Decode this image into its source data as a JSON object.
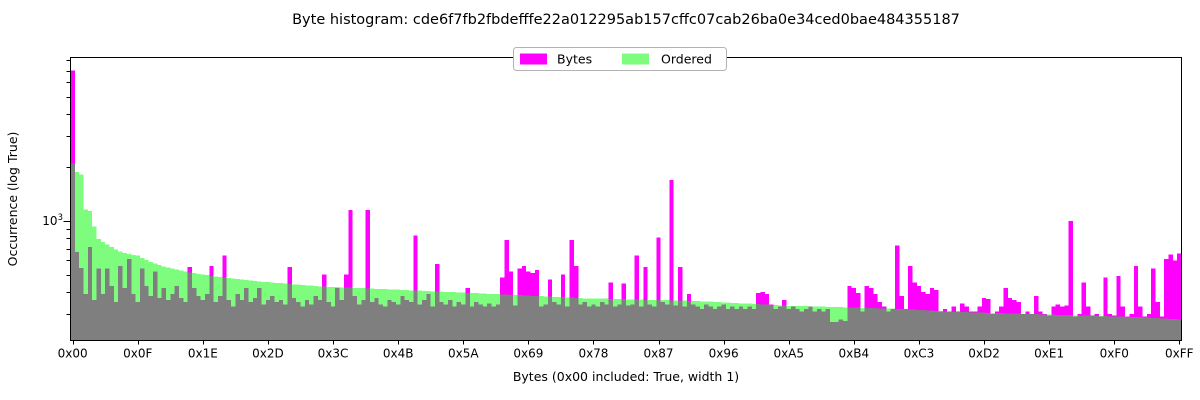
{
  "title": "Byte histogram: cde6f7fb2fbdefffe22a012295ab157cffc07cab26ba0e34ced0bae484355187",
  "legend": {
    "position": "upper center",
    "items": [
      {
        "label": "Bytes",
        "color": "#ff00ff"
      },
      {
        "label": "Ordered",
        "color": "#7dfc7d"
      }
    ]
  },
  "axes": {
    "x": {
      "label": "Bytes (0x00 included: True, width 1)"
    },
    "y": {
      "label": "Occurrence (log True)",
      "major_tick_base": "10",
      "major_tick_exponent": "3"
    }
  },
  "colors": {
    "bytes": "#ff00ff",
    "ordered": "#7dfc7d",
    "overlap": "#7f7f7f",
    "spine": "#000000",
    "background": "#ffffff",
    "legend_border": "#b3b3b3"
  },
  "chart_data": {
    "type": "bar",
    "title": "Byte histogram: cde6f7fb2fbdefffe22a012295ab157cffc07cab26ba0e34ced0bae484355187",
    "xlabel": "Bytes (0x00 included: True, width 1)",
    "ylabel": "Occurrence (log True)",
    "x_is_byte_value": true,
    "xlim": [
      -0.5,
      255.5
    ],
    "ylog": true,
    "ylim": [
      215,
      8350
    ],
    "grid": false,
    "legend_position": "upper center",
    "xtick_values": [
      0,
      15,
      30,
      45,
      60,
      75,
      90,
      105,
      120,
      135,
      150,
      165,
      180,
      195,
      210,
      225,
      240,
      255
    ],
    "xtick_labels": [
      "0x00",
      "0x0F",
      "0x1E",
      "0x2D",
      "0x3C",
      "0x4B",
      "0x5A",
      "0x69",
      "0x78",
      "0x87",
      "0x96",
      "0xA5",
      "0xB4",
      "0xC3",
      "0xD2",
      "0xE1",
      "0xF0",
      "0xFF"
    ],
    "ytick_major": [
      1000
    ],
    "ytick_minor": [
      300,
      400,
      500,
      600,
      700,
      800,
      900,
      2000,
      3000,
      4000,
      5000,
      6000,
      7000,
      8000
    ],
    "series": [
      {
        "name": "Bytes",
        "values": [
          7000,
          670,
          545,
          390,
          715,
          360,
          540,
          390,
          540,
          430,
          350,
          560,
          420,
          610,
          390,
          350,
          540,
          430,
          380,
          520,
          370,
          420,
          360,
          390,
          430,
          370,
          350,
          550,
          420,
          380,
          360,
          390,
          560,
          350,
          380,
          640,
          360,
          330,
          390,
          360,
          420,
          350,
          370,
          420,
          340,
          360,
          380,
          350,
          360,
          340,
          550,
          370,
          350,
          330,
          360,
          340,
          380,
          360,
          500,
          350,
          330,
          420,
          360,
          500,
          1150,
          380,
          340,
          360,
          1150,
          350,
          370,
          340,
          330,
          360,
          350,
          340,
          380,
          360,
          350,
          830,
          340,
          360,
          390,
          330,
          575,
          350,
          340,
          360,
          330,
          350,
          340,
          420,
          330,
          350,
          340,
          330,
          345,
          330,
          340,
          480,
          780,
          520,
          335,
          540,
          560,
          520,
          510,
          530,
          330,
          340,
          470,
          350,
          340,
          500,
          330,
          780,
          560,
          340,
          350,
          330,
          340,
          330,
          350,
          340,
          450,
          330,
          340,
          445,
          335,
          340,
          640,
          330,
          550,
          340,
          330,
          810,
          350,
          340,
          1700,
          335,
          550,
          330,
          390,
          340,
          330,
          320,
          340,
          330,
          320,
          330,
          340,
          320,
          330,
          320,
          330,
          320,
          330,
          320,
          395,
          400,
          390,
          340,
          320,
          330,
          360,
          320,
          330,
          320,
          310,
          320,
          330,
          310,
          320,
          310,
          320,
          270,
          270,
          280,
          275,
          430,
          420,
          395,
          310,
          430,
          420,
          390,
          350,
          330,
          310,
          320,
          730,
          380,
          320,
          560,
          450,
          430,
          400,
          390,
          420,
          410,
          310,
          320,
          310,
          330,
          310,
          345,
          330,
          310,
          310,
          330,
          370,
          365,
          300,
          310,
          330,
          420,
          370,
          360,
          350,
          300,
          310,
          300,
          380,
          310,
          300,
          295,
          330,
          340,
          330,
          335,
          1000,
          290,
          300,
          450,
          330,
          295,
          300,
          290,
          480,
          300,
          295,
          490,
          330,
          290,
          300,
          560,
          330,
          290,
          300,
          540,
          350,
          290,
          610,
          650,
          600,
          655
        ]
      },
      {
        "name": "Ordered",
        "values": [
          2100,
          1880,
          1820,
          1160,
          1140,
          930,
          790,
          760,
          740,
          715,
          690,
          675,
          660,
          652,
          645,
          640,
          620,
          605,
          590,
          578,
          566,
          556,
          548,
          540,
          533,
          527,
          521,
          515,
          510,
          505,
          500,
          496,
          492,
          488,
          484,
          480,
          477,
          474,
          471,
          468,
          465,
          462,
          459,
          457,
          455,
          453,
          451,
          449,
          447,
          445,
          443,
          441,
          439,
          437,
          435,
          433,
          431,
          429,
          428,
          427,
          426,
          425,
          424,
          423,
          422,
          421,
          420,
          419,
          418,
          417,
          416,
          415,
          414,
          413,
          412,
          411,
          410,
          409,
          408,
          407,
          406,
          405,
          404,
          403,
          402,
          401,
          400,
          399,
          398,
          397,
          396,
          395,
          394,
          393,
          392,
          391,
          390,
          389,
          388,
          387,
          386,
          385,
          384,
          383,
          382,
          381,
          380,
          379,
          378,
          377,
          376,
          375,
          374,
          373,
          372,
          371,
          370,
          369,
          368,
          368,
          367,
          367,
          366,
          366,
          365,
          365,
          364,
          364,
          363,
          363,
          362,
          362,
          361,
          361,
          360,
          360,
          359,
          359,
          358,
          358,
          357,
          357,
          356,
          356,
          355,
          354,
          353,
          352,
          351,
          350,
          349,
          348,
          347,
          346,
          345,
          344,
          343,
          342,
          341,
          340,
          339,
          338,
          337,
          336,
          335,
          334,
          333,
          333,
          332,
          332,
          331,
          331,
          330,
          330,
          329,
          329,
          328,
          328,
          327,
          327,
          326,
          326,
          325,
          325,
          324,
          324,
          323,
          323,
          322,
          322,
          321,
          321,
          320,
          319,
          318,
          317,
          316,
          315,
          314,
          313,
          312,
          311,
          310,
          309,
          309,
          308,
          308,
          307,
          307,
          306,
          306,
          305,
          305,
          304,
          304,
          303,
          303,
          302,
          302,
          301,
          301,
          300,
          300,
          299,
          299,
          298,
          298,
          297,
          297,
          296,
          296,
          295,
          295,
          294,
          294,
          293,
          293,
          292,
          292,
          291,
          291,
          290,
          290,
          289,
          289,
          288,
          288,
          287,
          287,
          286,
          285,
          284,
          283,
          282,
          281,
          280
        ]
      }
    ]
  }
}
